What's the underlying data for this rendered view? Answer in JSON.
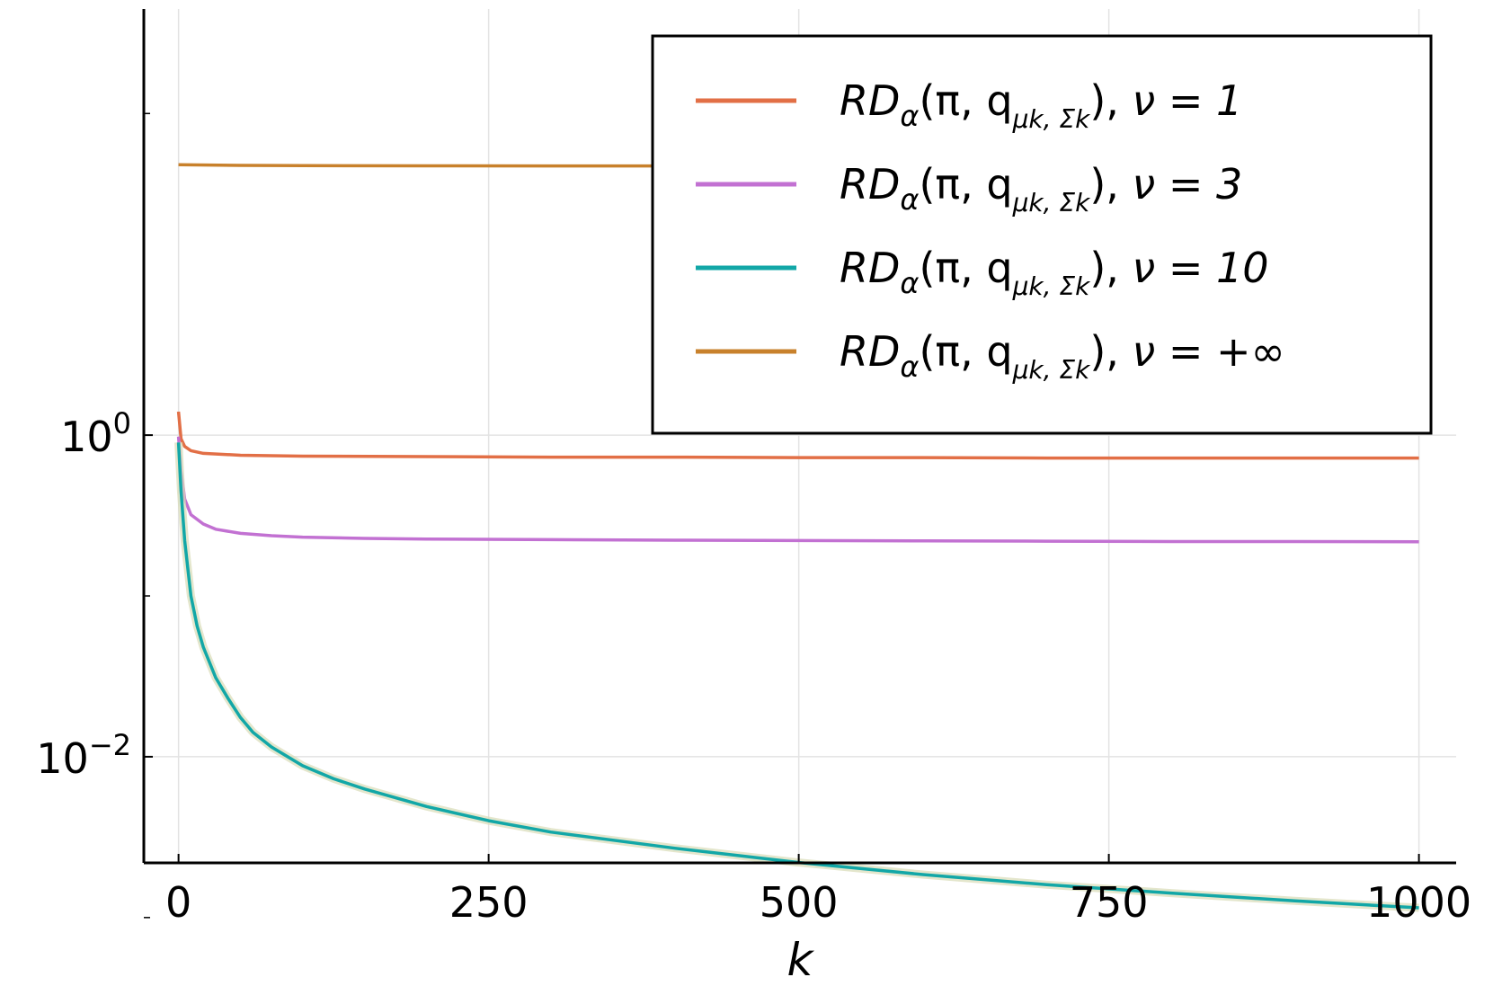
{
  "chart_data": {
    "type": "line",
    "title": "",
    "xlabel": "k",
    "ylabel": "",
    "xlim": [
      -28,
      1030
    ],
    "ylim_log10": [
      -2.66,
      2.65
    ],
    "y_scale": "log",
    "grid": true,
    "legend_position": "top-right",
    "x_ticks": [
      {
        "value": 0,
        "label": "0"
      },
      {
        "value": 250,
        "label": "250"
      },
      {
        "value": 500,
        "label": "500"
      },
      {
        "value": 750,
        "label": "750"
      },
      {
        "value": 1000,
        "label": "1000"
      }
    ],
    "y_ticks": [
      {
        "value": 1,
        "base": "10",
        "exp": "0"
      },
      {
        "value": 0.01,
        "base": "10",
        "exp": "−2"
      }
    ],
    "y_minor_ticks": [
      100,
      0.1,
      0.001
    ],
    "series": [
      {
        "name": "RDα(π, qμk,Σk), ν = 1",
        "legend": {
          "main": "RD",
          "sub": "α",
          "args": "(π, q",
          "sub2": "μk, Σk",
          "close": "),",
          "nu": "ν = 1"
        },
        "color": "#e26f46",
        "x": [
          0,
          2,
          5,
          10,
          20,
          50,
          100,
          200,
          300,
          400,
          500,
          600,
          700,
          800,
          900,
          1000
        ],
        "y": [
          1.4,
          0.95,
          0.85,
          0.8,
          0.77,
          0.75,
          0.74,
          0.735,
          0.73,
          0.73,
          0.725,
          0.725,
          0.72,
          0.72,
          0.72,
          0.72
        ]
      },
      {
        "name": "RDα(π, qμk,Σk), ν = 3",
        "legend": {
          "main": "RD",
          "sub": "α",
          "args": "(π, q",
          "sub2": "μk, Σk",
          "close": "),",
          "nu": "ν = 3"
        },
        "color": "#c271d2",
        "x": [
          0,
          2,
          5,
          10,
          20,
          30,
          50,
          75,
          100,
          150,
          200,
          300,
          400,
          500,
          600,
          700,
          800,
          900,
          1000
        ],
        "y": [
          0.98,
          0.6,
          0.4,
          0.32,
          0.28,
          0.26,
          0.245,
          0.237,
          0.232,
          0.228,
          0.226,
          0.224,
          0.222,
          0.221,
          0.22,
          0.219,
          0.218,
          0.218,
          0.217
        ]
      },
      {
        "name": "RDα(π, qμk,Σk), ν = 10",
        "legend": {
          "main": "RD",
          "sub": "α",
          "args": "(π, q",
          "sub2": "μk, Σk",
          "close": "),",
          "nu": "ν = 10"
        },
        "color": "#12a7a7",
        "x": [
          0,
          2,
          5,
          10,
          15,
          20,
          30,
          40,
          50,
          60,
          75,
          100,
          125,
          150,
          200,
          250,
          300,
          400,
          500,
          600,
          700,
          800,
          900,
          1000
        ],
        "y": [
          0.9,
          0.45,
          0.22,
          0.1,
          0.065,
          0.048,
          0.031,
          0.023,
          0.0175,
          0.0142,
          0.0115,
          0.0088,
          0.0073,
          0.0063,
          0.0049,
          0.004,
          0.0034,
          0.0027,
          0.0022,
          0.00185,
          0.0016,
          0.00142,
          0.00127,
          0.00115
        ]
      },
      {
        "name": "RDα(π, qμk,Σk), ν = +∞",
        "legend": {
          "main": "RD",
          "sub": "α",
          "args": "(π, q",
          "sub2": "μk, Σk",
          "close": "),",
          "nu": "ν = +∞"
        },
        "color": "#c8812c",
        "x": [
          0,
          50,
          100,
          200,
          300,
          400,
          500,
          600,
          700,
          800,
          900,
          1000
        ],
        "y": [
          48,
          47.6,
          47.4,
          47.3,
          47.2,
          47.2,
          47.2,
          47.2,
          47.2,
          47.2,
          47.2,
          47.2
        ]
      }
    ]
  }
}
